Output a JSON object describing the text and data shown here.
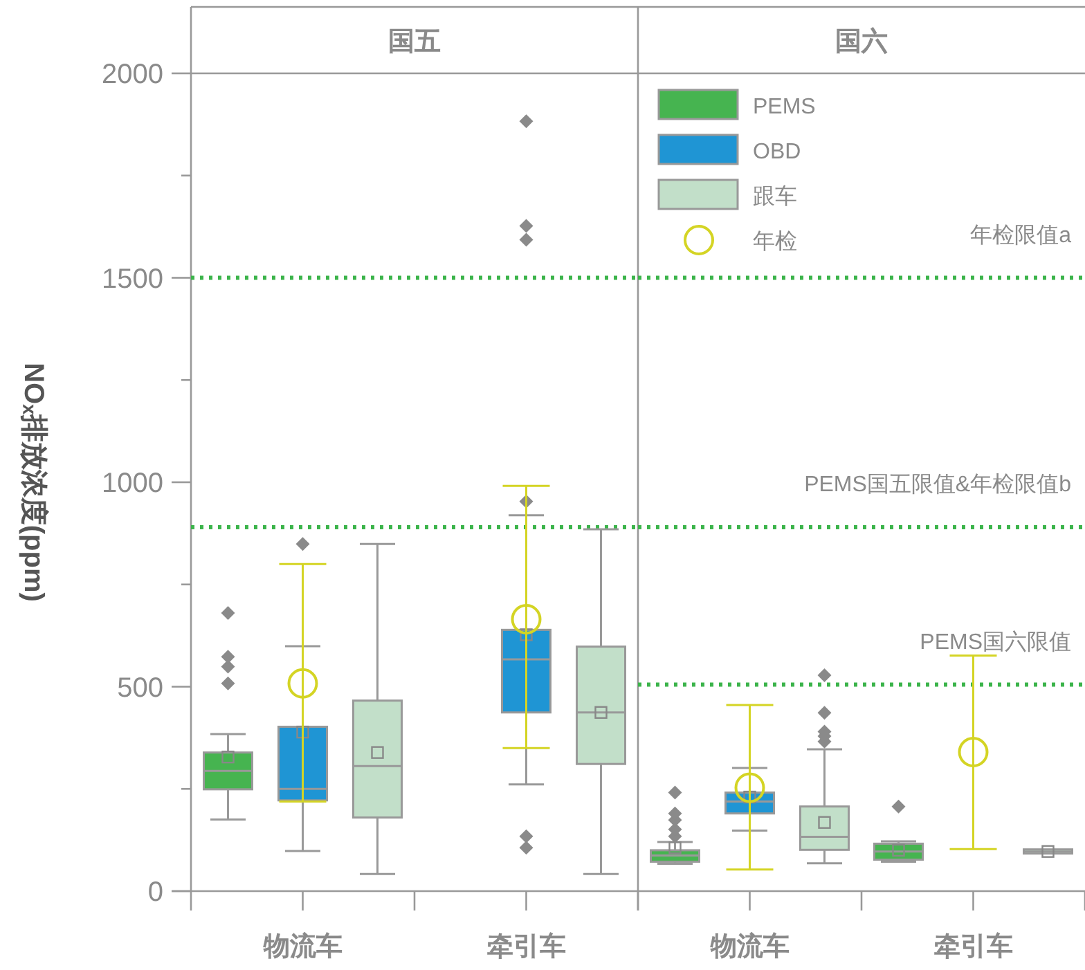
{
  "chart_data": [
    {
      "type": "box",
      "title": "国五",
      "ylabel": "NOₓ排放浓度(ppm)",
      "categories": [
        "物流车",
        "牵引车"
      ],
      "ylim": [
        0,
        2000
      ],
      "yticks": [
        0,
        {
          "value": 250,
          "label": null
        },
        500,
        {
          "value": 750,
          "label": null
        },
        1000,
        {
          "value": 1250,
          "label": null
        },
        1500,
        {
          "value": 1750,
          "label": null
        },
        2000
      ],
      "legend": false,
      "ref_lines": [
        {
          "axis": "y",
          "value": 1500,
          "color": "#3cb44b",
          "line_style": "dotted"
        },
        {
          "axis": "y",
          "value": 890,
          "color": "#3cb44b",
          "line_style": "dotted"
        }
      ],
      "series": [
        {
          "color": "#46b450",
          "boxes": [
            {
              "low": 175,
              "q1": 249,
              "median": 294,
              "q3": 339,
              "high": 384,
              "mean": 328,
              "outliers": [
                508,
                549,
                573,
                680
              ]
            },
            null
          ]
        },
        {
          "color": "#1f95d4",
          "boxes": [
            {
              "low": 98,
              "q1": 222,
              "median": 250,
              "q3": 402,
              "high": 599,
              "mean": 389,
              "outliers": [
                849
              ]
            },
            {
              "low": 261,
              "q1": 437,
              "median": 567,
              "q3": 639,
              "high": 919,
              "mean": 627,
              "outliers": [
                106,
                134,
                953,
                1593,
                1627,
                1883
              ]
            }
          ]
        },
        {
          "color": "#c2dfc9",
          "boxes": [
            {
              "low": 42,
              "q1": 180,
              "median": 306,
              "q3": 466,
              "high": 849,
              "mean": 339
            },
            {
              "low": 42,
              "q1": 311,
              "median": 437,
              "q3": 598,
              "high": 885,
              "mean": 437
            }
          ]
        },
        {
          "type": "scatter",
          "color": "#d4d424",
          "marker": "circle",
          "x": [
            "物流车",
            "牵引车"
          ],
          "values": [
            508,
            665
          ],
          "errors": [
            [
              219,
              800
            ],
            [
              350,
              991
            ]
          ]
        }
      ]
    },
    {
      "type": "box",
      "title": "国六",
      "categories": [
        "物流车",
        "牵引车"
      ],
      "ylim": [
        0,
        2000
      ],
      "tick_labels": "x",
      "legend": "top left",
      "ref_lines": [
        {
          "axis": "y",
          "value": 1500,
          "label": "年检限值a",
          "color": "#3cb44b",
          "line_style": "dotted"
        },
        {
          "axis": "y",
          "value": 890,
          "label": "PEMS国五限值&年检限值b",
          "color": "#3cb44b",
          "line_style": "dotted"
        },
        {
          "axis": "y",
          "value": 505,
          "label": "PEMS国六限值",
          "color": "#3cb44b",
          "line_style": "dotted"
        }
      ],
      "series": [
        {
          "name": "PEMS",
          "color": "#46b450",
          "boxes": [
            {
              "low": 67,
              "q1": 72,
              "median": 87,
              "q3": 100,
              "high": 120,
              "mean": 106,
              "outliers": [
                134,
                151,
                174,
                190,
                241
              ]
            },
            {
              "low": 72,
              "q1": 77,
              "median": 97,
              "q3": 116,
              "high": 122,
              "mean": 100,
              "outliers": [
                207
              ]
            }
          ]
        },
        {
          "name": "OBD",
          "color": "#1f95d4",
          "boxes": [
            {
              "low": 148,
              "q1": 190,
              "median": 219,
              "q3": 241,
              "high": 301,
              "mean": 230
            },
            null
          ]
        },
        {
          "name": "跟车",
          "color": "#c2dfc9",
          "boxes": [
            {
              "low": 68,
              "q1": 101,
              "median": 133,
              "q3": 207,
              "high": 347,
              "mean": 168,
              "outliers": [
                366,
                379,
                390,
                436,
                528
              ]
            },
            {
              "low": 97,
              "q1": 97,
              "median": 97,
              "q3": 97,
              "high": 97,
              "mean": 97
            }
          ]
        },
        {
          "name": "年检",
          "type": "scatter",
          "color": "#d4d424",
          "marker": "circle",
          "x": [
            "物流车",
            "牵引车"
          ],
          "values": [
            253,
            340
          ],
          "errors": [
            [
              53,
              455
            ],
            [
              103,
              576
            ]
          ]
        }
      ]
    }
  ]
}
